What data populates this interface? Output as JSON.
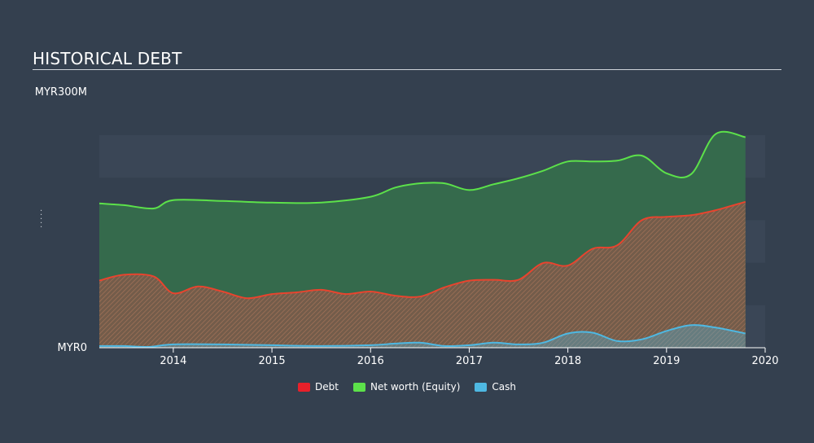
{
  "title": "HISTORICAL DEBT",
  "y_top_label": "MYR300M",
  "y_bottom_label": "MYR0",
  "colors": {
    "background": "#34404f",
    "band": "#3a4656",
    "debt": "#e8442e",
    "debt_swatch": "#e8202a",
    "equity": "#5ce14a",
    "equity_fill": "#356a4c",
    "cash": "#4eb8e2"
  },
  "legend": [
    {
      "key": "debt",
      "label": "Debt"
    },
    {
      "key": "equity",
      "label": "Net worth (Equity)"
    },
    {
      "key": "cash",
      "label": "Cash"
    }
  ],
  "chart_data": {
    "type": "area",
    "title": "HISTORICAL DEBT",
    "ylim": [
      0,
      300
    ],
    "y_unit": "MYR M",
    "x_ticks": [
      "2014",
      "2015",
      "2016",
      "2017",
      "2018",
      "2019",
      "2020"
    ],
    "xlim": [
      2013.25,
      2020.0
    ],
    "series": [
      {
        "name": "Net worth (Equity)",
        "key": "equity",
        "points": [
          [
            2013.25,
            172
          ],
          [
            2013.5,
            170
          ],
          [
            2013.8,
            166
          ],
          [
            2014.0,
            176
          ],
          [
            2014.5,
            175
          ],
          [
            2015.0,
            173
          ],
          [
            2015.5,
            173
          ],
          [
            2016.0,
            180
          ],
          [
            2016.25,
            191
          ],
          [
            2016.5,
            196
          ],
          [
            2016.75,
            196
          ],
          [
            2017.0,
            188
          ],
          [
            2017.25,
            195
          ],
          [
            2017.5,
            202
          ],
          [
            2017.75,
            211
          ],
          [
            2018.0,
            222
          ],
          [
            2018.25,
            222
          ],
          [
            2018.5,
            223
          ],
          [
            2018.75,
            229
          ],
          [
            2019.0,
            208
          ],
          [
            2019.25,
            207
          ],
          [
            2019.5,
            255
          ],
          [
            2019.8,
            251
          ]
        ]
      },
      {
        "name": "Debt",
        "key": "debt",
        "points": [
          [
            2013.25,
            80
          ],
          [
            2013.5,
            87
          ],
          [
            2013.8,
            85
          ],
          [
            2014.0,
            65
          ],
          [
            2014.25,
            73
          ],
          [
            2014.5,
            67
          ],
          [
            2014.75,
            59
          ],
          [
            2015.0,
            64
          ],
          [
            2015.25,
            66
          ],
          [
            2015.5,
            69
          ],
          [
            2015.75,
            64
          ],
          [
            2016.0,
            67
          ],
          [
            2016.25,
            62
          ],
          [
            2016.5,
            61
          ],
          [
            2016.75,
            72
          ],
          [
            2017.0,
            80
          ],
          [
            2017.25,
            81
          ],
          [
            2017.5,
            81
          ],
          [
            2017.75,
            101
          ],
          [
            2018.0,
            98
          ],
          [
            2018.25,
            118
          ],
          [
            2018.5,
            122
          ],
          [
            2018.75,
            152
          ],
          [
            2019.0,
            156
          ],
          [
            2019.25,
            158
          ],
          [
            2019.5,
            164
          ],
          [
            2019.8,
            174
          ]
        ]
      },
      {
        "name": "Cash",
        "key": "cash",
        "points": [
          [
            2013.25,
            2
          ],
          [
            2013.5,
            2
          ],
          [
            2013.75,
            1
          ],
          [
            2014.0,
            4
          ],
          [
            2014.5,
            4
          ],
          [
            2015.0,
            3
          ],
          [
            2015.5,
            2
          ],
          [
            2016.0,
            3
          ],
          [
            2016.25,
            5
          ],
          [
            2016.5,
            6
          ],
          [
            2016.75,
            2
          ],
          [
            2017.0,
            3
          ],
          [
            2017.25,
            6
          ],
          [
            2017.5,
            4
          ],
          [
            2017.75,
            6
          ],
          [
            2018.0,
            17
          ],
          [
            2018.25,
            18
          ],
          [
            2018.5,
            8
          ],
          [
            2018.75,
            10
          ],
          [
            2019.0,
            20
          ],
          [
            2019.25,
            27
          ],
          [
            2019.5,
            24
          ],
          [
            2019.8,
            17
          ]
        ]
      }
    ]
  }
}
